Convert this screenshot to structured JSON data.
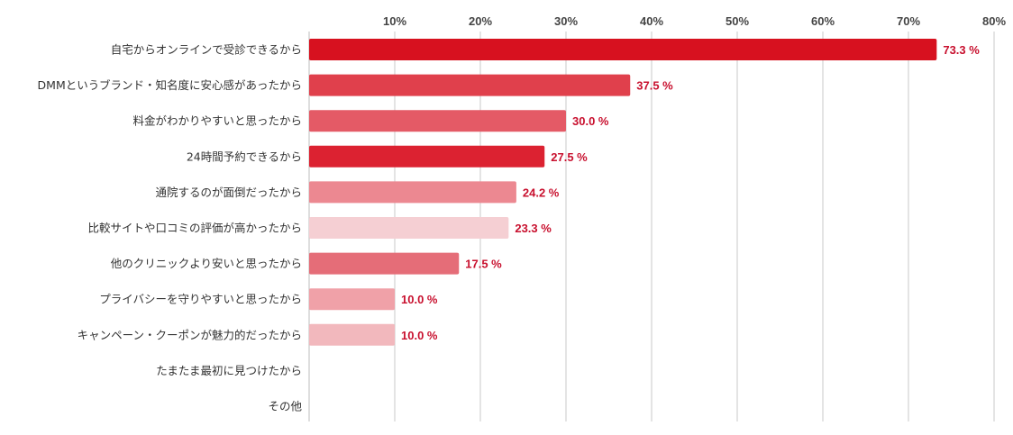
{
  "chart_data": {
    "type": "bar",
    "orientation": "horizontal",
    "x_ticks": [
      "10%",
      "20%",
      "30%",
      "40%",
      "50%",
      "60%",
      "70%",
      "80%"
    ],
    "xlim": [
      0,
      80
    ],
    "grid": true,
    "categories": [
      "自宅からオンラインで受診できるから",
      "DMMというブランド・知名度に安心感があったから",
      "料金がわかりやすいと思ったから",
      "24時間予約できるから",
      "通院するのが面倒だったから",
      "比較サイトや口コミの評価が高かったから",
      "他のクリニックより安いと思ったから",
      "プライバシーを守りやすいと思ったから",
      "キャンペーン・クーポンが魅力的だったから",
      "たまたま最初に見つけたから",
      "その他"
    ],
    "values": [
      73.3,
      37.5,
      30.0,
      27.5,
      24.2,
      23.3,
      17.5,
      10.0,
      10.0,
      null,
      null
    ],
    "data_labels": [
      "73.3 %",
      "37.5 %",
      "30.0 %",
      "27.5 %",
      "24.2 %",
      "23.3 %",
      "17.5 %",
      "10.0 %",
      "10.0 %",
      "",
      ""
    ],
    "bar_colors": [
      "#d7111f",
      "#e0404c",
      "#e45a66",
      "#dc2231",
      "#ec8891",
      "#f5cfd3",
      "#e56d78",
      "#f0a1a8",
      "#f2b8bd",
      "#ffffff",
      "#ffffff"
    ],
    "label_color": "#c8102e"
  }
}
